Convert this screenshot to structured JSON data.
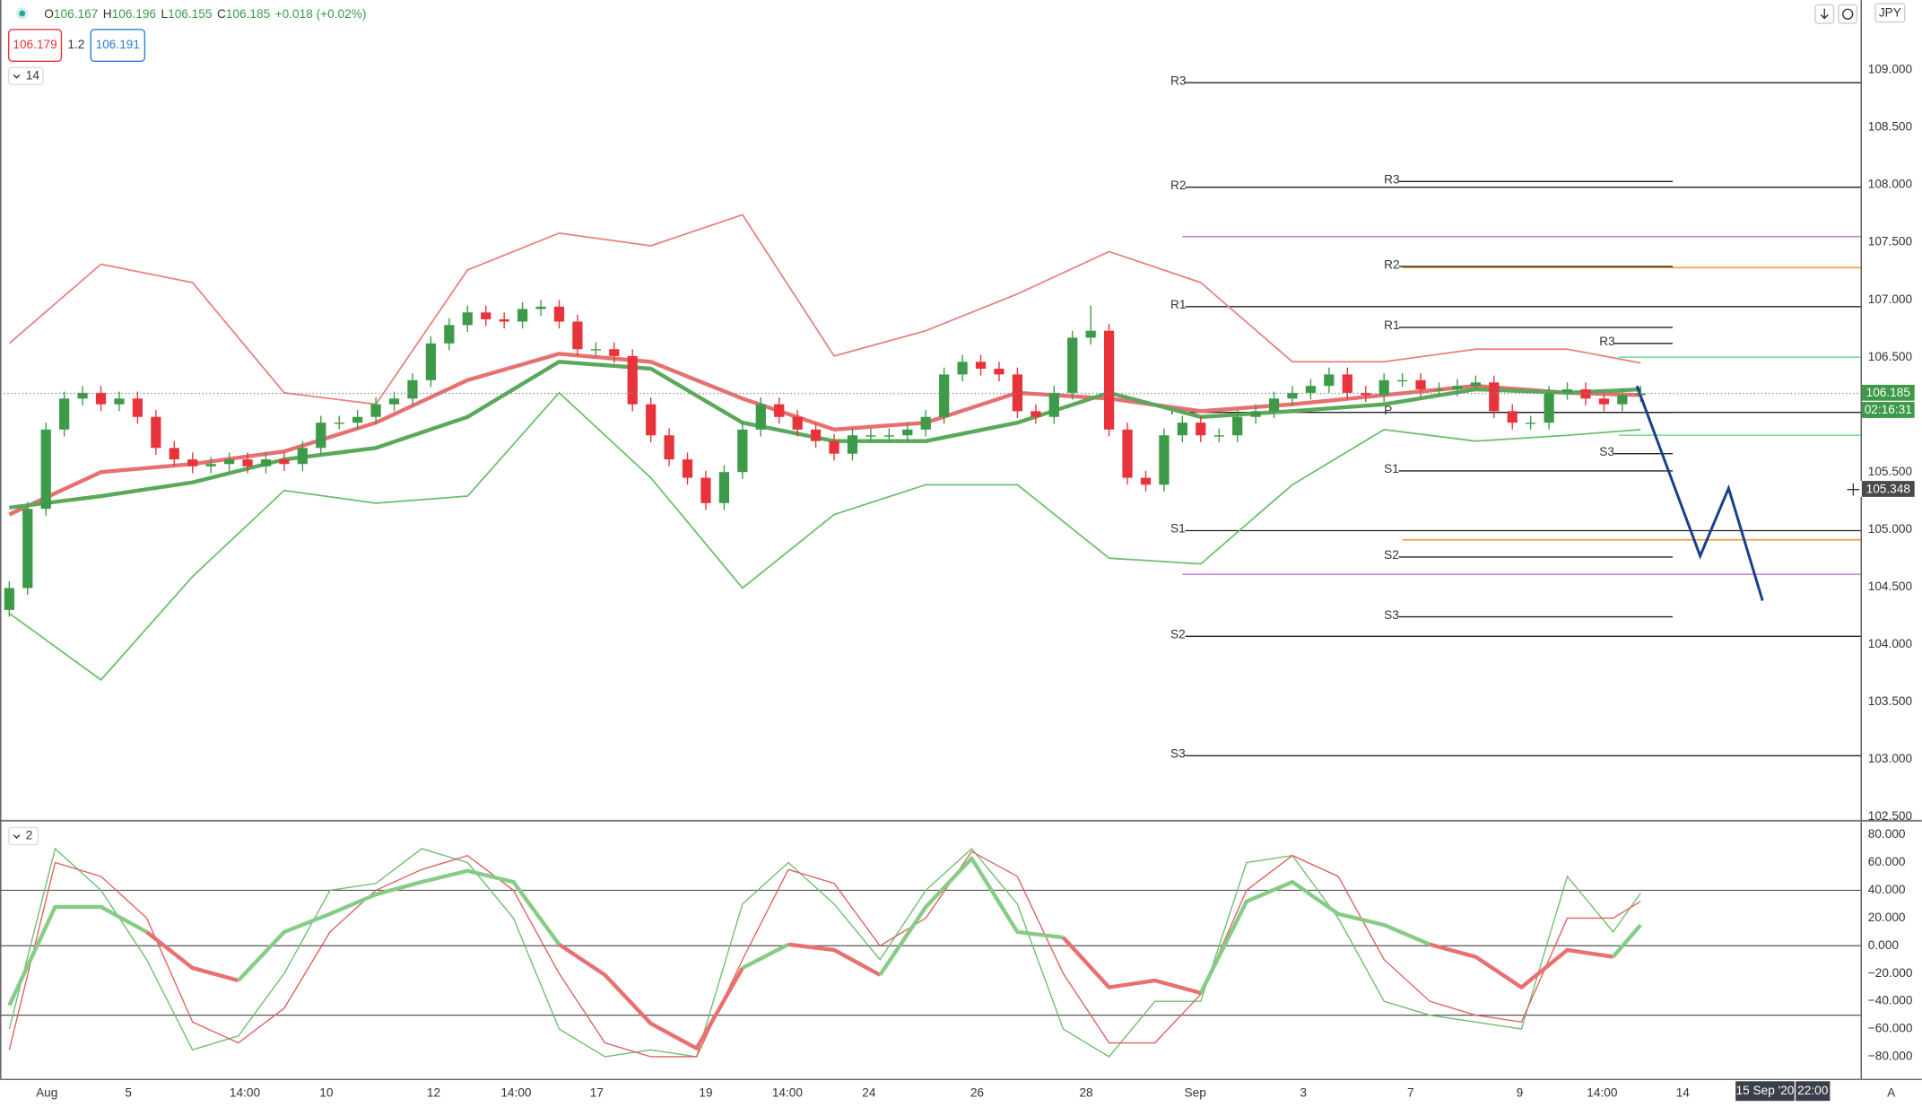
{
  "chart_data": [
    {
      "type": "candlestick",
      "ohlc_labels": [
        "O",
        "H",
        "L",
        "C"
      ],
      "ohlc_values": [
        106.167,
        106.196,
        106.155,
        106.185
      ],
      "change": "+0.018 (+0.02%)",
      "bid": 106.179,
      "spread": 1.2,
      "ask": 106.191,
      "indicator_count": 14,
      "currency": "JPY",
      "last_price": 106.185,
      "countdown": "02:16:31",
      "crosshair_price": 105.348,
      "date_tag": "15 Sep '20",
      "time_tag": "22:00",
      "up_color": "#3d9a48",
      "down_color": "#e8333b",
      "xlim": [
        -1,
        202
      ],
      "ylim": [
        102.48,
        109.61
      ],
      "xticks": [
        {
          "value": 4.1,
          "label": "Aug"
        },
        {
          "value": 13,
          "label": "5"
        },
        {
          "value": 25.7,
          "label": "14:00"
        },
        {
          "value": 34.6,
          "label": "10"
        },
        {
          "value": 46.3,
          "label": "12"
        },
        {
          "value": 55.3,
          "label": "14:00"
        },
        {
          "value": 64.1,
          "label": "17"
        },
        {
          "value": 76,
          "label": "19"
        },
        {
          "value": 84.9,
          "label": "14:00"
        },
        {
          "value": 93.8,
          "label": "24"
        },
        {
          "value": 105.6,
          "label": "26"
        },
        {
          "value": 117.5,
          "label": "28"
        },
        {
          "value": 129.4,
          "label": "Sep"
        },
        {
          "value": 141.2,
          "label": "3"
        },
        {
          "value": 152.9,
          "label": "7"
        },
        {
          "value": 164.8,
          "label": "9"
        },
        {
          "value": 173.8,
          "label": "14:00"
        },
        {
          "value": 182.6,
          "label": "14"
        }
      ],
      "yticks": [
        {
          "value": 102.5,
          "label": "102.500"
        },
        {
          "value": 103,
          "label": "103.000"
        },
        {
          "value": 103.5,
          "label": "103.500"
        },
        {
          "value": 104,
          "label": "104.000"
        },
        {
          "value": 104.5,
          "label": "104.500"
        },
        {
          "value": 105,
          "label": "105.000"
        },
        {
          "value": 105.5,
          "label": "105.500"
        },
        {
          "value": 106,
          "label": "106.000"
        },
        {
          "value": 106.5,
          "label": "106.500"
        },
        {
          "value": 107,
          "label": "107.000"
        },
        {
          "value": 107.5,
          "label": "107.500"
        },
        {
          "value": 108,
          "label": "108.000"
        },
        {
          "value": 108.5,
          "label": "108.500"
        },
        {
          "value": 109,
          "label": "109.000"
        }
      ],
      "x": [
        0,
        2,
        4,
        6,
        8,
        10,
        12,
        14,
        16,
        18,
        20,
        22,
        24,
        26,
        28,
        30,
        32,
        34,
        36,
        38,
        40,
        42,
        44,
        46,
        48,
        50,
        52,
        54,
        56,
        58,
        60,
        62,
        64,
        66,
        68,
        70,
        72,
        74,
        76,
        78,
        80,
        82,
        84,
        86,
        88,
        90,
        92,
        94,
        96,
        98,
        100,
        102,
        104,
        106,
        108,
        110,
        112,
        114,
        116,
        118,
        120,
        122,
        124,
        126,
        128,
        130,
        132,
        134,
        136,
        138,
        140,
        142,
        144,
        146,
        148,
        150,
        152,
        154,
        156,
        158,
        160,
        162,
        164,
        166,
        168,
        170,
        172,
        174,
        176,
        178
      ],
      "open": [
        104.3,
        104.49,
        105.18,
        105.87,
        106.14,
        106.19,
        106.09,
        106.14,
        105.98,
        105.71,
        105.61,
        105.55,
        105.57,
        105.61,
        105.55,
        105.61,
        105.57,
        105.71,
        105.93,
        105.93,
        105.98,
        106.09,
        106.14,
        106.3,
        106.62,
        106.78,
        106.89,
        106.83,
        106.81,
        106.92,
        106.94,
        106.81,
        106.57,
        106.57,
        106.51,
        106.09,
        105.82,
        105.61,
        105.45,
        105.23,
        105.5,
        105.87,
        106.09,
        105.98,
        105.87,
        105.77,
        105.66,
        105.82,
        105.82,
        105.82,
        105.87,
        105.98,
        106.35,
        106.46,
        106.4,
        106.35,
        106.03,
        105.98,
        106.19,
        106.67,
        106.73,
        105.87,
        105.45,
        105.39,
        105.82,
        105.93,
        105.82,
        105.82,
        105.98,
        106.03,
        106.14,
        106.19,
        106.25,
        106.35,
        106.19,
        106.17,
        106.3,
        106.3,
        106.22,
        106.22,
        106.25,
        106.28,
        106.03,
        105.93,
        105.93,
        106.19,
        106.22,
        106.14,
        106.09,
        106.17
      ],
      "high": [
        104.55,
        105.24,
        105.93,
        106.2,
        106.25,
        106.25,
        106.2,
        106.2,
        106.04,
        105.77,
        105.67,
        105.63,
        105.67,
        105.67,
        105.67,
        105.67,
        105.77,
        105.99,
        105.99,
        106.04,
        106.15,
        106.2,
        106.36,
        106.68,
        106.84,
        106.95,
        106.95,
        106.89,
        106.98,
        107.0,
        107.0,
        106.87,
        106.63,
        106.63,
        106.57,
        106.15,
        105.88,
        105.67,
        105.51,
        105.56,
        105.93,
        106.15,
        106.15,
        106.04,
        105.93,
        105.83,
        105.88,
        105.88,
        105.88,
        105.93,
        106.04,
        106.41,
        106.52,
        106.52,
        106.46,
        106.41,
        106.09,
        106.25,
        106.73,
        106.95,
        106.79,
        105.93,
        105.51,
        105.88,
        105.99,
        105.99,
        105.88,
        106.04,
        106.09,
        106.2,
        106.25,
        106.31,
        106.41,
        106.41,
        106.25,
        106.36,
        106.36,
        106.36,
        106.28,
        106.31,
        106.34,
        106.34,
        106.09,
        105.99,
        106.25,
        106.28,
        106.28,
        106.2,
        106.23,
        106.25
      ],
      "low": [
        104.24,
        104.43,
        105.12,
        105.81,
        106.08,
        106.03,
        106.03,
        105.92,
        105.65,
        105.55,
        105.49,
        105.49,
        105.51,
        105.49,
        105.49,
        105.51,
        105.51,
        105.65,
        105.87,
        105.87,
        105.92,
        106.03,
        106.08,
        106.24,
        106.56,
        106.72,
        106.77,
        106.75,
        106.75,
        106.86,
        106.75,
        106.51,
        106.51,
        106.45,
        106.03,
        105.76,
        105.55,
        105.39,
        105.17,
        105.17,
        105.44,
        105.81,
        105.92,
        105.81,
        105.71,
        105.6,
        105.6,
        105.76,
        105.76,
        105.76,
        105.81,
        105.92,
        106.29,
        106.34,
        106.29,
        105.97,
        105.92,
        105.92,
        106.13,
        106.61,
        105.81,
        105.39,
        105.33,
        105.33,
        105.76,
        105.76,
        105.76,
        105.76,
        105.92,
        105.97,
        106.08,
        106.13,
        106.19,
        106.13,
        106.11,
        106.11,
        106.24,
        106.16,
        106.16,
        106.16,
        106.22,
        105.97,
        105.87,
        105.87,
        105.87,
        106.13,
        106.08,
        106.03,
        106.03,
        106.11
      ],
      "close": [
        104.49,
        105.18,
        105.87,
        106.14,
        106.19,
        106.09,
        106.14,
        105.98,
        105.71,
        105.61,
        105.55,
        105.57,
        105.61,
        105.55,
        105.61,
        105.57,
        105.71,
        105.93,
        105.93,
        105.98,
        106.09,
        106.14,
        106.3,
        106.62,
        106.78,
        106.89,
        106.83,
        106.81,
        106.92,
        106.94,
        106.81,
        106.57,
        106.57,
        106.51,
        106.09,
        105.82,
        105.61,
        105.45,
        105.23,
        105.5,
        105.87,
        106.09,
        105.98,
        105.87,
        105.77,
        105.66,
        105.82,
        105.82,
        105.82,
        105.87,
        105.98,
        106.35,
        106.46,
        106.4,
        106.35,
        106.03,
        105.98,
        106.19,
        106.67,
        106.73,
        105.87,
        105.45,
        105.39,
        105.82,
        105.93,
        105.82,
        105.82,
        105.98,
        106.03,
        106.14,
        106.19,
        106.25,
        106.35,
        106.19,
        106.17,
        106.3,
        106.3,
        106.22,
        106.22,
        106.25,
        106.28,
        106.03,
        105.93,
        105.93,
        106.19,
        106.22,
        106.14,
        106.09,
        106.17,
        106.185
      ],
      "overlays": [
        {
          "color": "#e88080",
          "width": 1.3,
          "x": [
            0,
            10,
            20,
            30,
            40,
            50,
            60,
            70,
            80,
            90,
            100,
            110,
            120,
            130,
            140,
            150,
            160,
            170,
            178
          ],
          "values": [
            106.62,
            107.31,
            107.15,
            106.19,
            106.09,
            107.26,
            107.58,
            107.47,
            107.74,
            106.51,
            106.73,
            107.05,
            107.42,
            107.15,
            106.46,
            106.46,
            106.57,
            106.57,
            106.45
          ]
        },
        {
          "color": "#6cbf6c",
          "width": 1.3,
          "x": [
            0,
            10,
            20,
            30,
            40,
            50,
            60,
            70,
            80,
            90,
            100,
            110,
            120,
            130,
            140,
            150,
            160,
            170,
            178
          ],
          "values": [
            104.27,
            103.69,
            104.59,
            105.34,
            105.23,
            105.29,
            106.19,
            105.45,
            104.49,
            105.13,
            105.39,
            105.39,
            104.75,
            104.7,
            105.39,
            105.87,
            105.77,
            105.82,
            105.87
          ]
        },
        {
          "color": "#e77070",
          "width": 3.2,
          "x": [
            0,
            10,
            20,
            30,
            40,
            50,
            60,
            70,
            80,
            90,
            100,
            110,
            120,
            130,
            140,
            150,
            160,
            170,
            178
          ],
          "values": [
            105.13,
            105.5,
            105.57,
            105.68,
            105.93,
            106.3,
            106.53,
            106.46,
            106.14,
            105.87,
            105.93,
            106.19,
            106.14,
            106.03,
            106.09,
            106.17,
            106.25,
            106.19,
            106.17
          ]
        },
        {
          "color": "#5aa85a",
          "width": 3.2,
          "x": [
            0,
            10,
            20,
            30,
            40,
            50,
            60,
            70,
            80,
            90,
            100,
            110,
            120,
            130,
            140,
            150,
            160,
            170,
            178
          ],
          "values": [
            105.19,
            105.29,
            105.41,
            105.61,
            105.71,
            105.98,
            106.46,
            106.4,
            105.93,
            105.77,
            105.77,
            105.93,
            106.19,
            105.98,
            106.03,
            106.09,
            106.22,
            106.19,
            106.22
          ]
        }
      ],
      "pivot_sets": [
        {
          "labels": [
            "R3",
            "R2",
            "R1",
            "P",
            "S1",
            "S2",
            "S3"
          ],
          "values": [
            108.89,
            107.98,
            106.94,
            106.02,
            104.99,
            104.07,
            103.03
          ],
          "from": 126.7
        },
        {
          "labels": [
            "R3",
            "R2",
            "R1",
            "P",
            "S1",
            "S2",
            "S3"
          ],
          "values": [
            108.03,
            107.29,
            106.76,
            106.02,
            105.51,
            104.76,
            104.24
          ],
          "from": 150,
          "to": 181.5
        },
        {
          "labels": [
            "R3",
            "S3"
          ],
          "values": [
            106.62,
            105.66
          ],
          "from": 173.5,
          "to": 181.5
        }
      ],
      "levels": [
        {
          "value": 107.55,
          "color": "#cc88dd",
          "from": 128
        },
        {
          "value": 104.61,
          "color": "#cc88dd",
          "from": 128
        },
        {
          "value": 107.28,
          "color": "#f0a040",
          "from": 152
        },
        {
          "value": 104.91,
          "color": "#f0a040",
          "from": 152
        },
        {
          "value": 106.5,
          "color": "#7ddc9a",
          "from": 175.6
        },
        {
          "value": 105.82,
          "color": "#7ddc9a",
          "from": 175.6
        }
      ],
      "projection": {
        "color": "#1a3f8f",
        "x": [
          177.6,
          184.5,
          187.6,
          191.3
        ],
        "values": [
          106.25,
          104.77,
          105.36,
          104.38
        ]
      }
    },
    {
      "type": "line",
      "indicator_count": 2,
      "xlim": [
        -1,
        202
      ],
      "ylim": [
        -95.9,
        89.7
      ],
      "yticks": [
        {
          "value": -80,
          "label": "−80.000"
        },
        {
          "value": -60,
          "label": "−60.000"
        },
        {
          "value": -40,
          "label": "−40.000"
        },
        {
          "value": -20,
          "label": "−20.000"
        },
        {
          "value": 0,
          "label": "0.000"
        },
        {
          "value": 20,
          "label": "20.000"
        },
        {
          "value": 40,
          "label": "40.000"
        },
        {
          "value": 60,
          "label": "60.000"
        },
        {
          "value": 80,
          "label": "80.000"
        }
      ],
      "levels": [
        40,
        0,
        -50
      ],
      "x": [
        0,
        5,
        10,
        15,
        20,
        25,
        30,
        35,
        40,
        45,
        50,
        55,
        60,
        65,
        70,
        75,
        80,
        85,
        90,
        95,
        100,
        105,
        110,
        115,
        120,
        125,
        130,
        135,
        140,
        145,
        150,
        155,
        160,
        165,
        170,
        175,
        178
      ],
      "series": [
        {
          "color": "#6cbf6c",
          "width": 1,
          "values": [
            -60,
            70,
            40,
            -10,
            -75,
            -65,
            -20,
            40,
            45,
            70,
            60,
            20,
            -60,
            -80,
            -75,
            -80,
            30,
            60,
            30,
            -10,
            40,
            70,
            30,
            -60,
            -80,
            -40,
            -40,
            60,
            65,
            20,
            -40,
            -50,
            -55,
            -60,
            50,
            10,
            38
          ]
        },
        {
          "color": "#e06060",
          "width": 1,
          "values": [
            -75,
            60,
            50,
            20,
            -55,
            -70,
            -45,
            10,
            40,
            55,
            65,
            40,
            -20,
            -70,
            -80,
            -80,
            -10,
            55,
            45,
            0,
            20,
            68,
            50,
            -20,
            -70,
            -70,
            -35,
            40,
            65,
            50,
            -10,
            -40,
            -50,
            -55,
            20,
            20,
            32
          ]
        },
        {
          "color_up": "#86cc86",
          "color_down": "#e8706f",
          "width": 3.2,
          "values": [
            -43,
            28,
            28,
            10,
            -16,
            -25,
            10,
            23,
            37,
            46,
            54,
            46,
            1,
            -21,
            -56,
            -74,
            -16,
            1,
            -3,
            -21,
            28,
            63,
            10,
            6,
            -30,
            -25,
            -34,
            32,
            46,
            23,
            15,
            1,
            -8,
            -30,
            -3,
            -8,
            15
          ]
        }
      ]
    }
  ]
}
